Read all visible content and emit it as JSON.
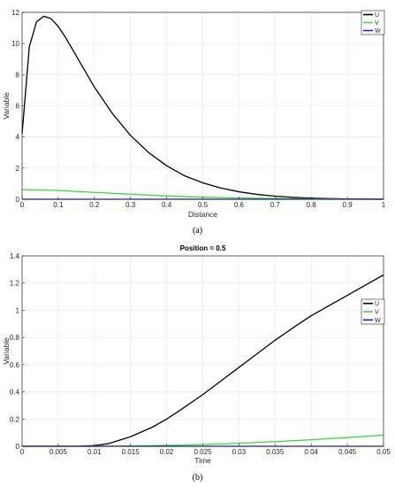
{
  "chart_data": [
    {
      "type": "line",
      "panel_caption": "(a)",
      "title": "",
      "xlabel": "Distance",
      "ylabel": "Variable",
      "xlim": [
        0,
        1
      ],
      "ylim": [
        0,
        12
      ],
      "xticks": [
        0,
        0.1,
        0.2,
        0.3,
        0.4,
        0.5,
        0.6,
        0.7,
        0.8,
        0.9,
        1
      ],
      "yticks": [
        0,
        2,
        4,
        6,
        8,
        10,
        12
      ],
      "grid": true,
      "legend": "top-right",
      "series": [
        {
          "name": "U",
          "color": "#000000",
          "x": [
            0,
            0.02,
            0.04,
            0.06,
            0.08,
            0.1,
            0.12,
            0.15,
            0.2,
            0.25,
            0.3,
            0.35,
            0.4,
            0.45,
            0.5,
            0.55,
            0.6,
            0.65,
            0.7,
            0.75,
            0.8,
            0.85,
            0.9,
            0.95,
            1
          ],
          "y": [
            4.2,
            9.8,
            11.4,
            11.75,
            11.6,
            11.1,
            10.4,
            9.2,
            7.2,
            5.5,
            4.1,
            3.0,
            2.15,
            1.5,
            1.05,
            0.72,
            0.48,
            0.31,
            0.2,
            0.12,
            0.07,
            0.04,
            0.02,
            0.01,
            0.0
          ]
        },
        {
          "name": "V",
          "color": "#33dd33",
          "x": [
            0,
            0.1,
            0.2,
            0.3,
            0.4,
            0.5,
            0.6,
            0.7,
            0.8,
            0.9,
            1
          ],
          "y": [
            0.62,
            0.56,
            0.44,
            0.32,
            0.21,
            0.13,
            0.08,
            0.05,
            0.03,
            0.01,
            0.0
          ]
        },
        {
          "name": "W",
          "color": "#1a1aff",
          "x": [
            0,
            0.5,
            1
          ],
          "y": [
            0.0,
            0.0,
            0.0
          ]
        }
      ]
    },
    {
      "type": "line",
      "panel_caption": "(b)",
      "title": "Position = 0.5",
      "xlabel": "Time",
      "ylabel": "Variable",
      "xlim": [
        0,
        0.05
      ],
      "ylim": [
        0,
        1.4
      ],
      "xticks": [
        0,
        0.005,
        0.01,
        0.015,
        0.02,
        0.025,
        0.03,
        0.035,
        0.04,
        0.045,
        0.05
      ],
      "yticks": [
        0,
        0.2,
        0.4,
        0.6,
        0.8,
        1,
        1.2,
        1.4
      ],
      "grid": true,
      "legend": "right",
      "series": [
        {
          "name": "U",
          "color": "#000000",
          "x": [
            0,
            0.005,
            0.008,
            0.01,
            0.012,
            0.015,
            0.018,
            0.02,
            0.022,
            0.025,
            0.028,
            0.03,
            0.032,
            0.035,
            0.038,
            0.04,
            0.042,
            0.045,
            0.048,
            0.05
          ],
          "y": [
            0.0,
            0.0,
            0.001,
            0.005,
            0.02,
            0.07,
            0.14,
            0.2,
            0.27,
            0.38,
            0.5,
            0.58,
            0.66,
            0.78,
            0.89,
            0.96,
            1.02,
            1.11,
            1.2,
            1.26
          ]
        },
        {
          "name": "V",
          "color": "#33dd33",
          "x": [
            0,
            0.01,
            0.015,
            0.02,
            0.025,
            0.03,
            0.035,
            0.04,
            0.045,
            0.05
          ],
          "y": [
            0.0,
            0.0,
            0.002,
            0.006,
            0.012,
            0.022,
            0.034,
            0.048,
            0.064,
            0.082
          ]
        },
        {
          "name": "W",
          "color": "#1a1aff",
          "x": [
            0,
            0.025,
            0.05
          ],
          "y": [
            0.0,
            0.0,
            0.0
          ]
        }
      ]
    }
  ]
}
